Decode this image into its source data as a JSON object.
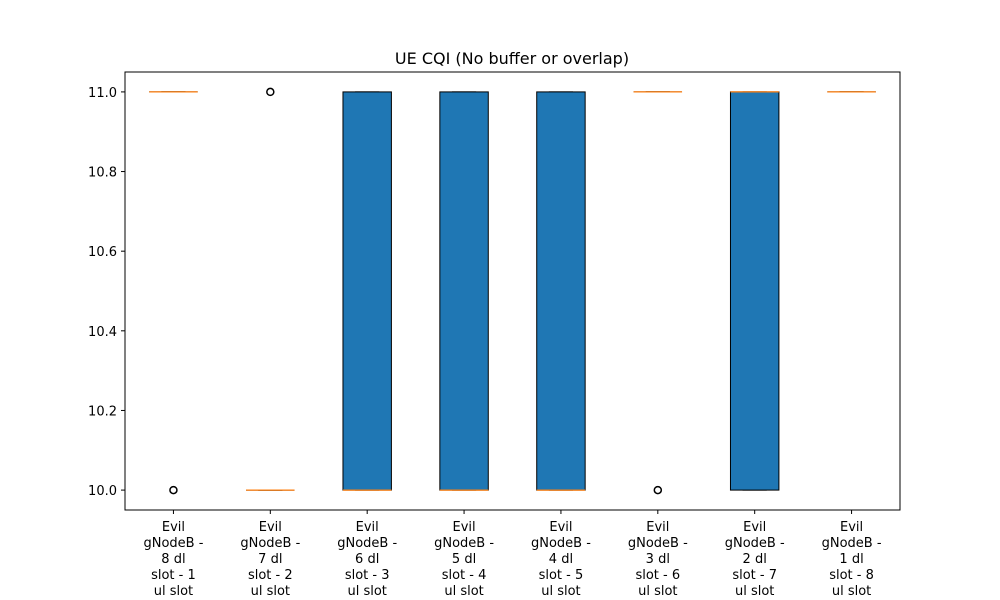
{
  "chart_data": {
    "type": "box",
    "title": "UE CQI (No buffer or overlap)",
    "xlabel": "",
    "ylabel": "",
    "ylim": [
      9.95,
      11.05
    ],
    "yticks": [
      "10.0",
      "10.2",
      "10.4",
      "10.6",
      "10.8",
      "11.0"
    ],
    "grid": false,
    "categories": [
      [
        "Evil",
        "gNodeB -",
        "8 dl",
        "slot - 1",
        "ul slot"
      ],
      [
        "Evil",
        "gNodeB -",
        "7 dl",
        "slot - 2",
        "ul slot"
      ],
      [
        "Evil",
        "gNodeB -",
        "6 dl",
        "slot - 3",
        "ul slot"
      ],
      [
        "Evil",
        "gNodeB -",
        "5 dl",
        "slot - 4",
        "ul slot"
      ],
      [
        "Evil",
        "gNodeB -",
        "4 dl",
        "slot - 5",
        "ul slot"
      ],
      [
        "Evil",
        "gNodeB -",
        "3 dl",
        "slot - 6",
        "ul slot"
      ],
      [
        "Evil",
        "gNodeB -",
        "2 dl",
        "slot - 7",
        "ul slot"
      ],
      [
        "Evil",
        "gNodeB -",
        "1 dl",
        "slot - 8",
        "ul slot"
      ]
    ],
    "boxes": [
      {
        "q1": 11,
        "median": 11,
        "q3": 11,
        "whisker_low": 11,
        "whisker_high": 11,
        "outliers": [
          10
        ]
      },
      {
        "q1": 10,
        "median": 10,
        "q3": 10,
        "whisker_low": 10,
        "whisker_high": 10,
        "outliers": [
          11
        ]
      },
      {
        "q1": 10,
        "median": 10,
        "q3": 11,
        "whisker_low": 10,
        "whisker_high": 11,
        "outliers": []
      },
      {
        "q1": 10,
        "median": 10,
        "q3": 11,
        "whisker_low": 10,
        "whisker_high": 11,
        "outliers": []
      },
      {
        "q1": 10,
        "median": 10,
        "q3": 11,
        "whisker_low": 10,
        "whisker_high": 11,
        "outliers": []
      },
      {
        "q1": 11,
        "median": 11,
        "q3": 11,
        "whisker_low": 11,
        "whisker_high": 11,
        "outliers": [
          10
        ]
      },
      {
        "q1": 10,
        "median": 11,
        "q3": 11,
        "whisker_low": 10,
        "whisker_high": 11,
        "outliers": []
      },
      {
        "q1": 11,
        "median": 11,
        "q3": 11,
        "whisker_low": 11,
        "whisker_high": 11,
        "outliers": []
      }
    ],
    "colors": {
      "box_fill": "#1f77b4",
      "median": "#ff7f0e",
      "edge": "#000000"
    }
  }
}
